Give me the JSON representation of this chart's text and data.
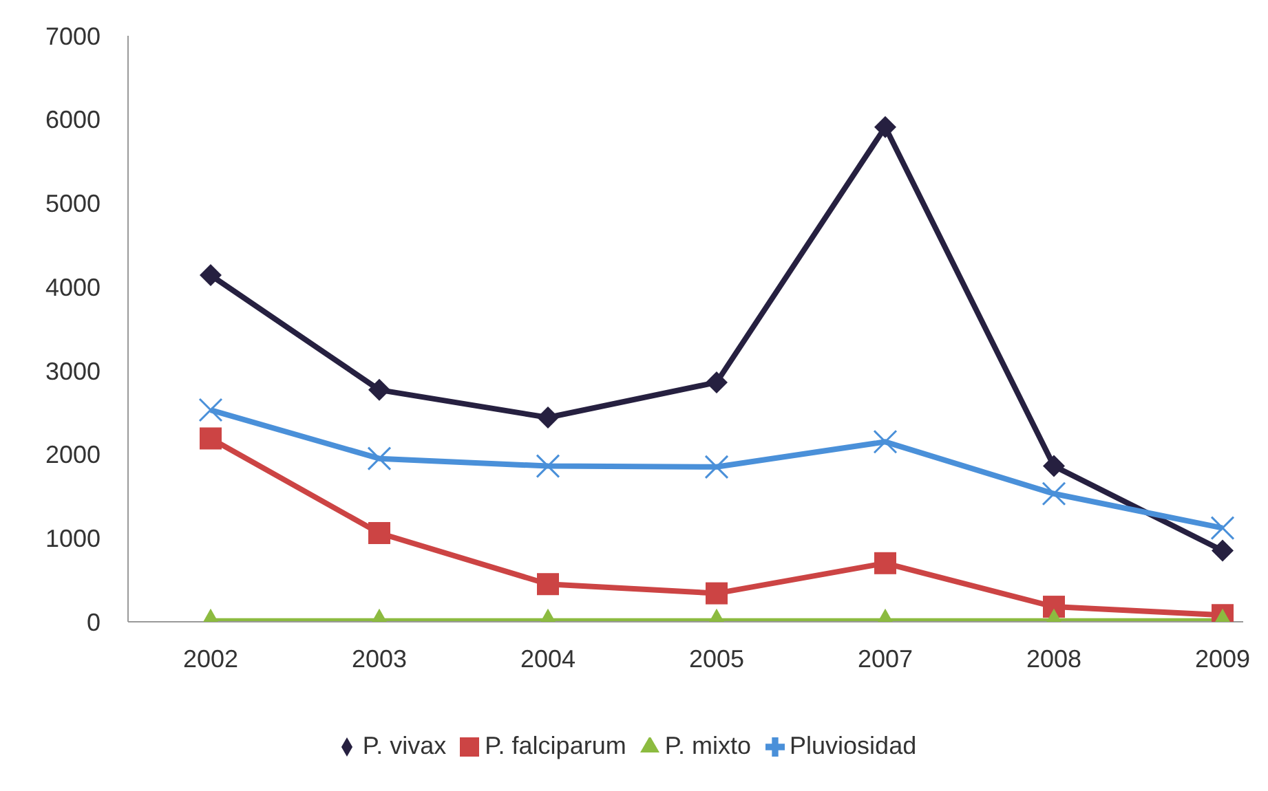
{
  "chart_data": {
    "type": "line",
    "categories": [
      "2002",
      "2003",
      "2004",
      "2005",
      "2007",
      "2008",
      "2009"
    ],
    "series": [
      {
        "name": "P. vivax",
        "color": "#262040",
        "marker": "diamond",
        "values": [
          4140,
          2770,
          2440,
          2860,
          5910,
          1860,
          850
        ]
      },
      {
        "name": "P. falciparum",
        "color": "#cc4444",
        "marker": "square",
        "values": [
          2190,
          1060,
          450,
          340,
          700,
          180,
          80
        ]
      },
      {
        "name": "P. mixto",
        "color": "#8cbb40",
        "marker": "triangle",
        "values": [
          10,
          10,
          10,
          10,
          10,
          10,
          10
        ]
      },
      {
        "name": "Pluviosidad",
        "color": "#4a90d9",
        "marker": "cross",
        "values": [
          2530,
          1950,
          1860,
          1850,
          2150,
          1530,
          1120
        ]
      }
    ],
    "ylim": [
      0,
      7000
    ],
    "yticks": [
      0,
      1000,
      2000,
      3000,
      4000,
      5000,
      6000,
      7000
    ],
    "grid": false,
    "legend": "bottom",
    "line_style": "solid"
  }
}
